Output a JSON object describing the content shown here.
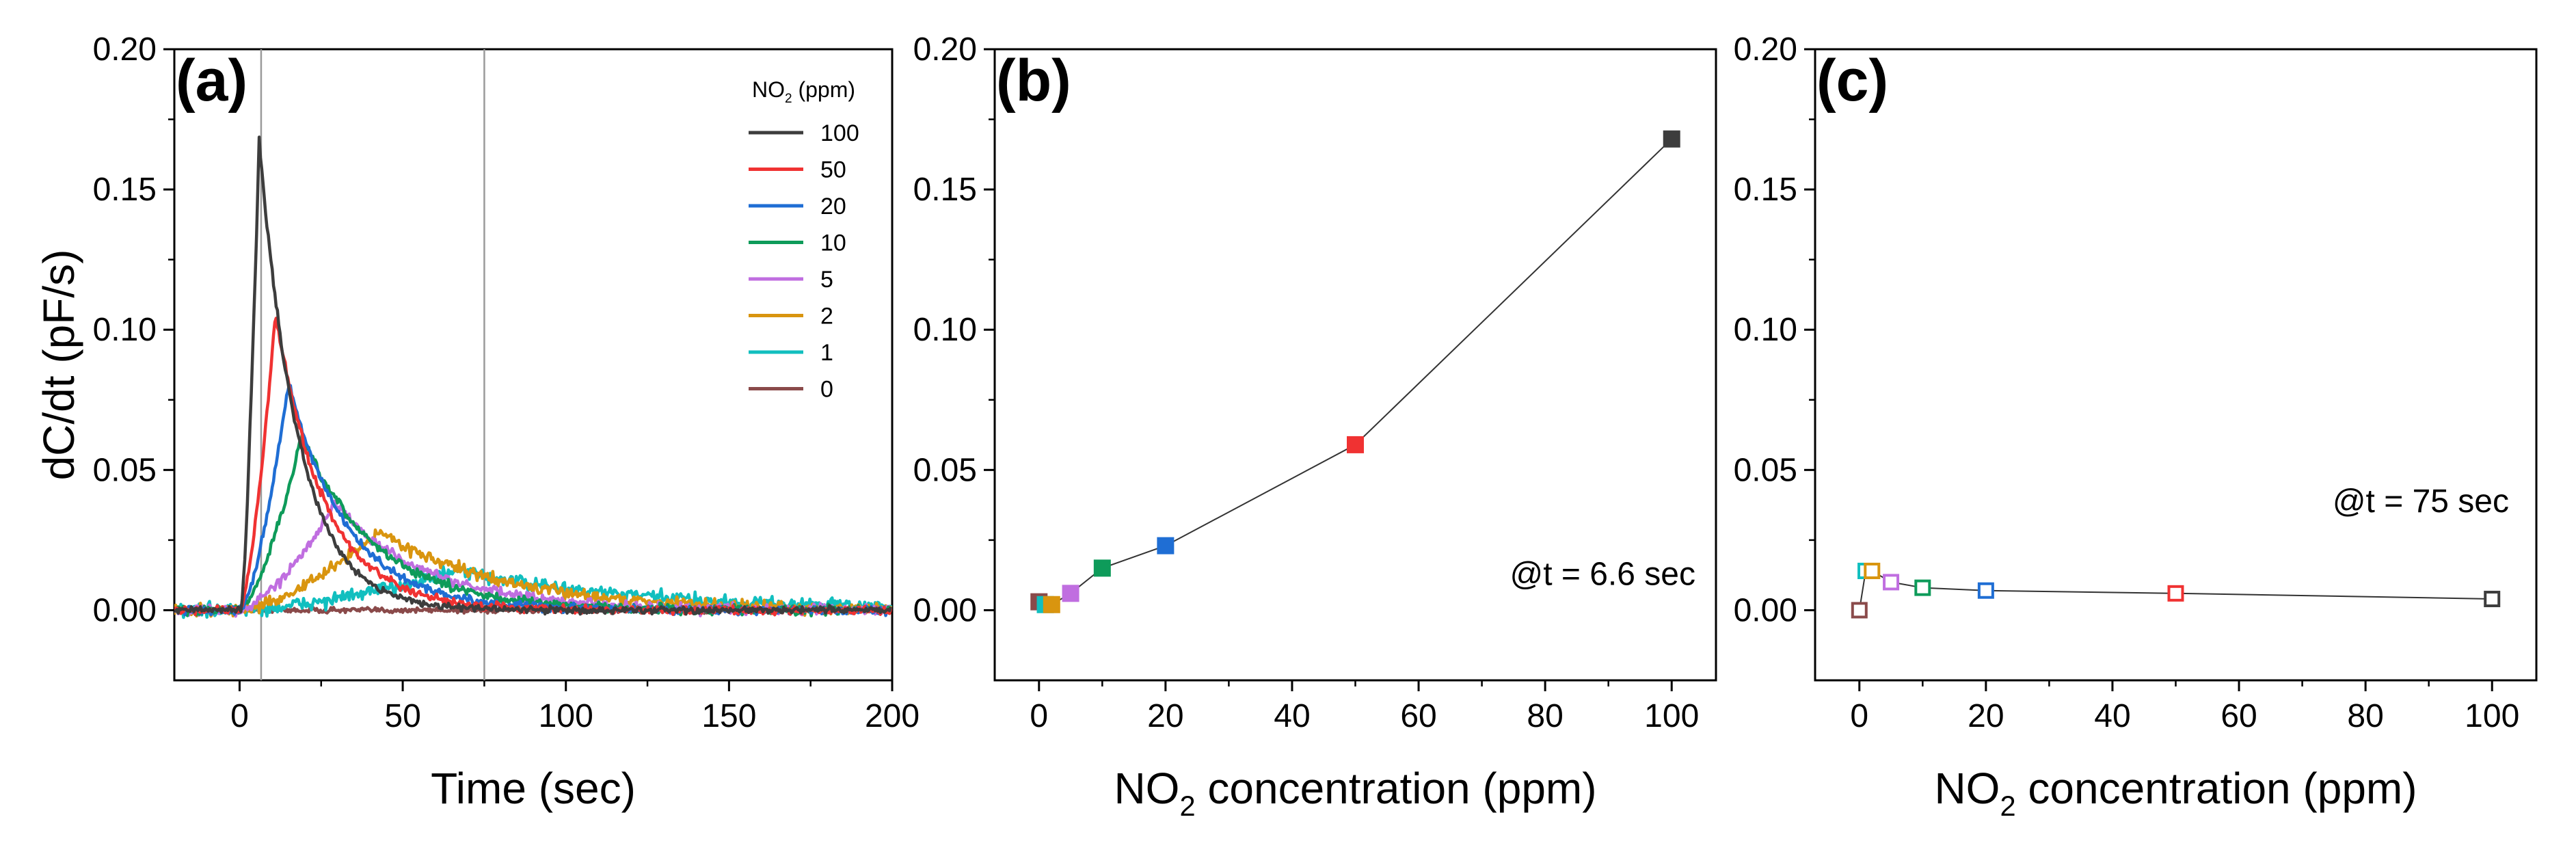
{
  "chart_data": [
    {
      "panel": "(a)",
      "type": "line",
      "title": "",
      "xlabel": "Time (sec)",
      "ylabel": "dC/dt (pF/s)",
      "xlim": [
        -20,
        200
      ],
      "ylim": [
        -0.025,
        0.2
      ],
      "xticks": [
        "0",
        "50",
        "100",
        "150",
        "200"
      ],
      "yticks": [
        "0.00",
        "0.05",
        "0.10",
        "0.15",
        "0.20"
      ],
      "xtick_values": [
        0,
        50,
        100,
        150,
        200
      ],
      "ytick_values": [
        0,
        0.05,
        0.1,
        0.15,
        0.2
      ],
      "vlines": [
        6.6,
        75
      ],
      "legend_title": {
        "prefix": "NO",
        "sub": "2",
        "suffix": " (ppm)"
      },
      "legend_position": "top-right",
      "series": [
        {
          "name": "100",
          "color": "#3d3d3d",
          "peak_t": 6,
          "peak": 0.168,
          "rise": 3.2,
          "decay": 12,
          "noise": 0.0012
        },
        {
          "name": "50",
          "color": "#f03232",
          "peak_t": 11,
          "peak": 0.106,
          "rise": 4.8,
          "decay": 15,
          "noise": 0.0014
        },
        {
          "name": "20",
          "color": "#1f6ed4",
          "peak_t": 15,
          "peak": 0.081,
          "rise": 6.2,
          "decay": 18,
          "noise": 0.0014
        },
        {
          "name": "10",
          "color": "#0e9b5a",
          "peak_t": 19,
          "peak": 0.062,
          "rise": 8,
          "decay": 23,
          "noise": 0.0016
        },
        {
          "name": "5",
          "color": "#c06ee0",
          "peak_t": 29,
          "peak": 0.038,
          "rise": 11,
          "decay": 28,
          "noise": 0.0018
        },
        {
          "name": "2",
          "color": "#d9950f",
          "peak_t": 43,
          "peak": 0.028,
          "rise": 22,
          "decay": 38,
          "noise": 0.002
        },
        {
          "name": "1",
          "color": "#11bfbf",
          "peak_t": 67,
          "peak": 0.014,
          "rise": 18,
          "decay": 55,
          "noise": 0.0024
        },
        {
          "name": "0",
          "color": "#8a4a4a",
          "peak_t": 10,
          "peak": 0.0,
          "rise": 5,
          "decay": 10,
          "noise": 0.001
        }
      ]
    },
    {
      "panel": "(b)",
      "type": "scatter",
      "marker": "filled-square",
      "xlabel": {
        "prefix": "NO",
        "sub": "2",
        "suffix": " concentration (ppm)"
      },
      "ylabel": "",
      "xlim": [
        -7,
        107
      ],
      "ylim": [
        -0.025,
        0.2
      ],
      "xticks": [
        "0",
        "20",
        "40",
        "60",
        "80",
        "100"
      ],
      "yticks": [
        "0.00",
        "0.05",
        "0.10",
        "0.15",
        "0.20"
      ],
      "xtick_values": [
        0,
        20,
        40,
        60,
        80,
        100
      ],
      "ytick_values": [
        0,
        0.05,
        0.1,
        0.15,
        0.2
      ],
      "annotation": "@t = 6.6 sec",
      "points": [
        {
          "x": 0,
          "y": 0.003,
          "color": "#8a4a4a"
        },
        {
          "x": 1,
          "y": 0.002,
          "color": "#11bfbf"
        },
        {
          "x": 2,
          "y": 0.002,
          "color": "#d9950f"
        },
        {
          "x": 5,
          "y": 0.006,
          "color": "#c06ee0"
        },
        {
          "x": 10,
          "y": 0.015,
          "color": "#0e9b5a"
        },
        {
          "x": 20,
          "y": 0.023,
          "color": "#1f6ed4"
        },
        {
          "x": 50,
          "y": 0.059,
          "color": "#f03232"
        },
        {
          "x": 100,
          "y": 0.168,
          "color": "#3d3d3d"
        }
      ]
    },
    {
      "panel": "(c)",
      "type": "scatter",
      "marker": "open-square",
      "xlabel": {
        "prefix": "NO",
        "sub": "2",
        "suffix": " concentration (ppm)"
      },
      "ylabel": "",
      "xlim": [
        -7,
        107
      ],
      "ylim": [
        -0.025,
        0.2
      ],
      "xticks": [
        "0",
        "20",
        "40",
        "60",
        "80",
        "100"
      ],
      "yticks": [
        "0.00",
        "0.05",
        "0.10",
        "0.15",
        "0.20"
      ],
      "xtick_values": [
        0,
        20,
        40,
        60,
        80,
        100
      ],
      "ytick_values": [
        0,
        0.05,
        0.1,
        0.15,
        0.2
      ],
      "annotation": "@t = 75 sec",
      "points": [
        {
          "x": 0,
          "y": 0.0,
          "color": "#8a4a4a"
        },
        {
          "x": 1,
          "y": 0.014,
          "color": "#11bfbf"
        },
        {
          "x": 2,
          "y": 0.014,
          "color": "#d9950f"
        },
        {
          "x": 5,
          "y": 0.01,
          "color": "#c06ee0"
        },
        {
          "x": 10,
          "y": 0.008,
          "color": "#0e9b5a"
        },
        {
          "x": 20,
          "y": 0.007,
          "color": "#1f6ed4"
        },
        {
          "x": 50,
          "y": 0.006,
          "color": "#f03232"
        },
        {
          "x": 100,
          "y": 0.004,
          "color": "#3d3d3d"
        }
      ]
    }
  ]
}
